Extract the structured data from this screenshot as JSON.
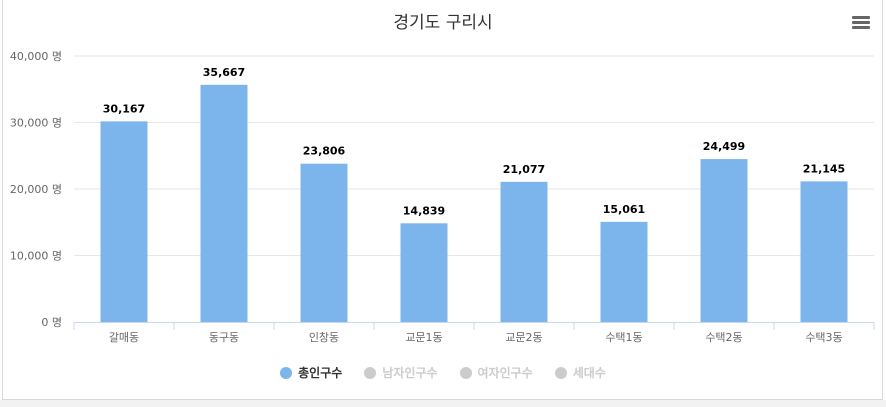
{
  "chart_data": {
    "type": "bar",
    "title": "경기도 구리시",
    "categories": [
      "갈매동",
      "동구동",
      "인창동",
      "교문1동",
      "교문2동",
      "수택1동",
      "수택2동",
      "수택3동"
    ],
    "series": [
      {
        "name": "총인구수",
        "values": [
          30167,
          35667,
          23806,
          14839,
          21077,
          15061,
          24499,
          21145
        ],
        "color": "#7cb5ec",
        "visible": true
      }
    ],
    "data_labels": [
      "30,167",
      "35,667",
      "23,806",
      "14,839",
      "21,077",
      "15,061",
      "24,499",
      "21,145"
    ],
    "ylim": [
      0,
      40000
    ],
    "yticks": [
      0,
      10000,
      20000,
      30000,
      40000
    ],
    "ytick_labels": [
      "0 명",
      "10,000 명",
      "20,000 명",
      "30,000 명",
      "40,000 명"
    ],
    "grid": true,
    "legend_position": "bottom-center"
  },
  "legend": [
    {
      "label": "총인구수",
      "color": "#7cb5ec",
      "active": true
    },
    {
      "label": "남자인구수",
      "color": "#cccccc",
      "active": false
    },
    {
      "label": "여자인구수",
      "color": "#cccccc",
      "active": false
    },
    {
      "label": "세대수",
      "color": "#cccccc",
      "active": false
    }
  ],
  "menu_icon": "hamburger-menu-icon"
}
